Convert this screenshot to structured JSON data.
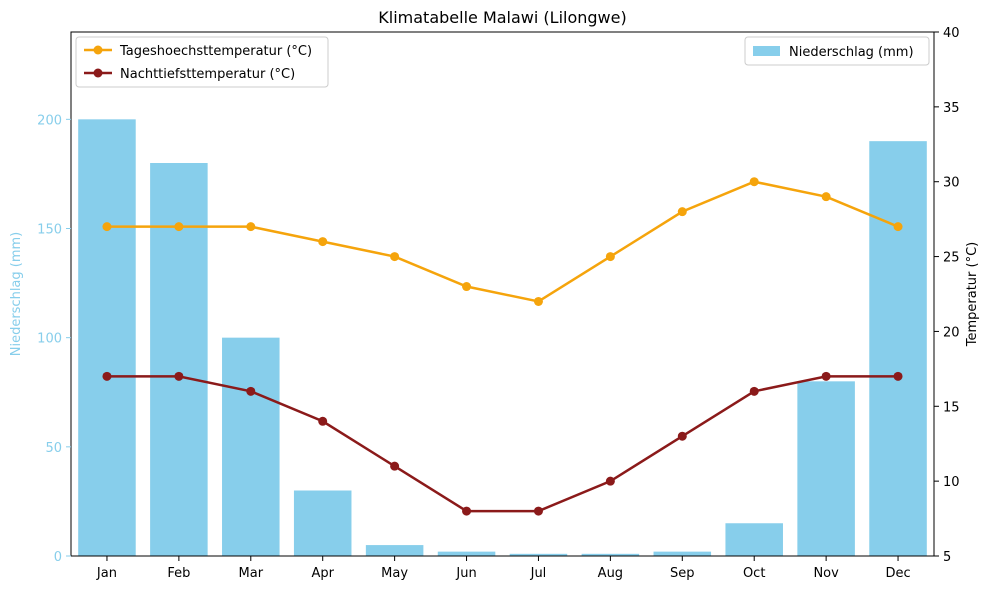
{
  "chart_data": {
    "type": "bar",
    "title": "Klimatabelle Malawi (Lilongwe)",
    "categories": [
      "Jan",
      "Feb",
      "Mar",
      "Apr",
      "May",
      "Jun",
      "Jul",
      "Aug",
      "Sep",
      "Oct",
      "Nov",
      "Dec"
    ],
    "bars": {
      "name": "Niederschlag (mm)",
      "values": [
        200,
        180,
        100,
        30,
        5,
        2,
        1,
        1,
        2,
        15,
        80,
        190
      ],
      "color": "#87CEEB"
    },
    "lines": [
      {
        "name": "Tageshoechsttemperatur (°C)",
        "values": [
          27,
          27,
          27,
          26,
          25,
          23,
          22,
          25,
          28,
          30,
          29,
          27
        ],
        "color": "#F5A40C"
      },
      {
        "name": "Nachttiefsttemperatur (°C)",
        "values": [
          17,
          17,
          16,
          14,
          11,
          8,
          8,
          10,
          13,
          16,
          17,
          17
        ],
        "color": "#8B1A1A"
      }
    ],
    "ylabel_left": "Niederschlag (mm)",
    "ylabel_right": "Temperatur (°C)",
    "ylim_left": [
      0,
      240
    ],
    "ylim_right": [
      5,
      40
    ],
    "yticks_left": [
      0,
      50,
      100,
      150,
      200
    ],
    "yticks_right": [
      5,
      10,
      15,
      20,
      25,
      30,
      35,
      40
    ],
    "left_axis_color": "#87CEEB",
    "legend_lines_position": "upper-left",
    "legend_bars_position": "upper-right",
    "grid": false
  }
}
